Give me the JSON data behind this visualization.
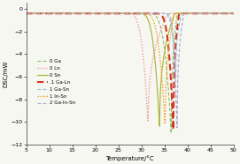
{
  "title": "",
  "xlabel": "Temperature/°C",
  "ylabel": "DSC/mW",
  "xlim": [
    5,
    50
  ],
  "ylim": [
    -12,
    0.5
  ],
  "yticks": [
    0.0,
    -2.0,
    -4.0,
    -6.0,
    -8.0,
    -10.0,
    -12.0
  ],
  "xticks": [
    5,
    10,
    15,
    20,
    25,
    30,
    35,
    40,
    45,
    50
  ],
  "background": "#f7f7f2",
  "series": [
    {
      "label": "0 Ga",
      "color": "#88c060",
      "linestyle": "dashed",
      "linewidth": 0.8,
      "peak_x": 36.5,
      "peak_y": -11.2,
      "onset_x": 31.5,
      "return_x": 37.8,
      "desc_exp": 3.5,
      "asc_exp": 0.35
    },
    {
      "label": "0 Ln",
      "color": "#e8a8a0",
      "linestyle": "dotted",
      "linewidth": 1.0,
      "peak_x": 31.5,
      "peak_y": -10.5,
      "onset_x": 27.0,
      "return_x": 35.8,
      "desc_exp": 3.5,
      "asc_exp": 0.35
    },
    {
      "label": "0 Sn",
      "color": "#b0b840",
      "linestyle": "solid",
      "linewidth": 0.9,
      "peak_x": 34.0,
      "peak_y": -10.8,
      "onset_x": 29.5,
      "return_x": 37.2,
      "desc_exp": 3.5,
      "asc_exp": 0.35
    },
    {
      "label": ".1 Ga-Ln",
      "color": "#d83020",
      "linestyle": "dashed",
      "linewidth": 1.5,
      "peak_x": 37.0,
      "peak_y": -11.5,
      "onset_x": 33.0,
      "return_x": 38.2,
      "desc_exp": 4.0,
      "asc_exp": 0.3
    },
    {
      "label": "1 Ga-Sn",
      "color": "#90c0d8",
      "linestyle": "dashed",
      "linewidth": 0.8,
      "peak_x": 37.5,
      "peak_y": -6.5,
      "onset_x": 34.5,
      "return_x": 38.8,
      "desc_exp": 4.0,
      "asc_exp": 0.3
    },
    {
      "label": "1 In-Sn",
      "color": "#f0a838",
      "linestyle": "dotted",
      "linewidth": 1.0,
      "peak_x": 35.2,
      "peak_y": -10.8,
      "onset_x": 30.5,
      "return_x": 37.2,
      "desc_exp": 3.5,
      "asc_exp": 0.35
    },
    {
      "label": "2 Ga-In-Sn",
      "color": "#a8a8cc",
      "linestyle": "dashed",
      "linewidth": 0.8,
      "peak_x": 37.8,
      "peak_y": -11.6,
      "onset_x": 35.2,
      "return_x": 39.2,
      "desc_exp": 4.0,
      "asc_exp": 0.3
    }
  ],
  "baseline_y": -0.42
}
